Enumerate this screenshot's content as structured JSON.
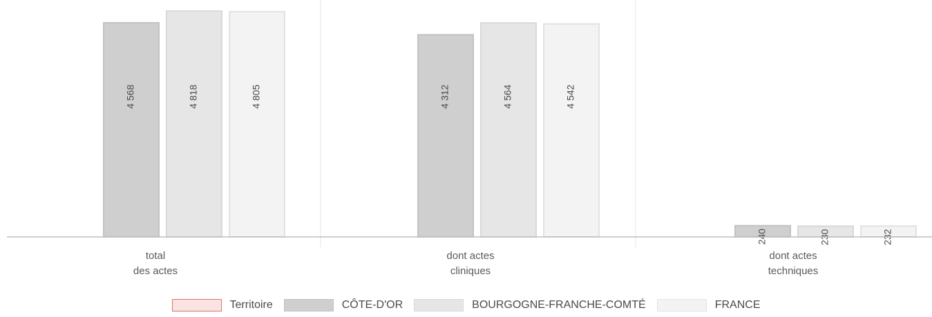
{
  "chart_data": {
    "type": "bar",
    "categories": [
      [
        "total",
        "des actes"
      ],
      [
        "dont actes",
        "cliniques"
      ],
      [
        "dont actes",
        "techniques"
      ]
    ],
    "series": [
      {
        "name": "Territoire",
        "values": [
          null,
          null,
          null
        ],
        "color": "#fbe3e3",
        "stroke": "#e07070"
      },
      {
        "name": "CÔTE-D'OR",
        "values": [
          4568,
          4312,
          240
        ],
        "labels": [
          "4 568",
          "4 312",
          "240"
        ],
        "color": "#cfcfcf",
        "stroke": "#c2c2c2"
      },
      {
        "name": "BOURGOGNE-FRANCHE-COMTÉ",
        "values": [
          4818,
          4564,
          230
        ],
        "labels": [
          "4 818",
          "4 564",
          "230"
        ],
        "color": "#e6e6e6",
        "stroke": "#d8d8d8"
      },
      {
        "name": "FRANCE",
        "values": [
          4805,
          4542,
          232
        ],
        "labels": [
          "4 805",
          "4 542",
          "232"
        ],
        "color": "#f3f3f3",
        "stroke": "#e2e2e2"
      }
    ],
    "ylim": [
      0,
      4818
    ],
    "grid": false,
    "legend": "bottom"
  }
}
